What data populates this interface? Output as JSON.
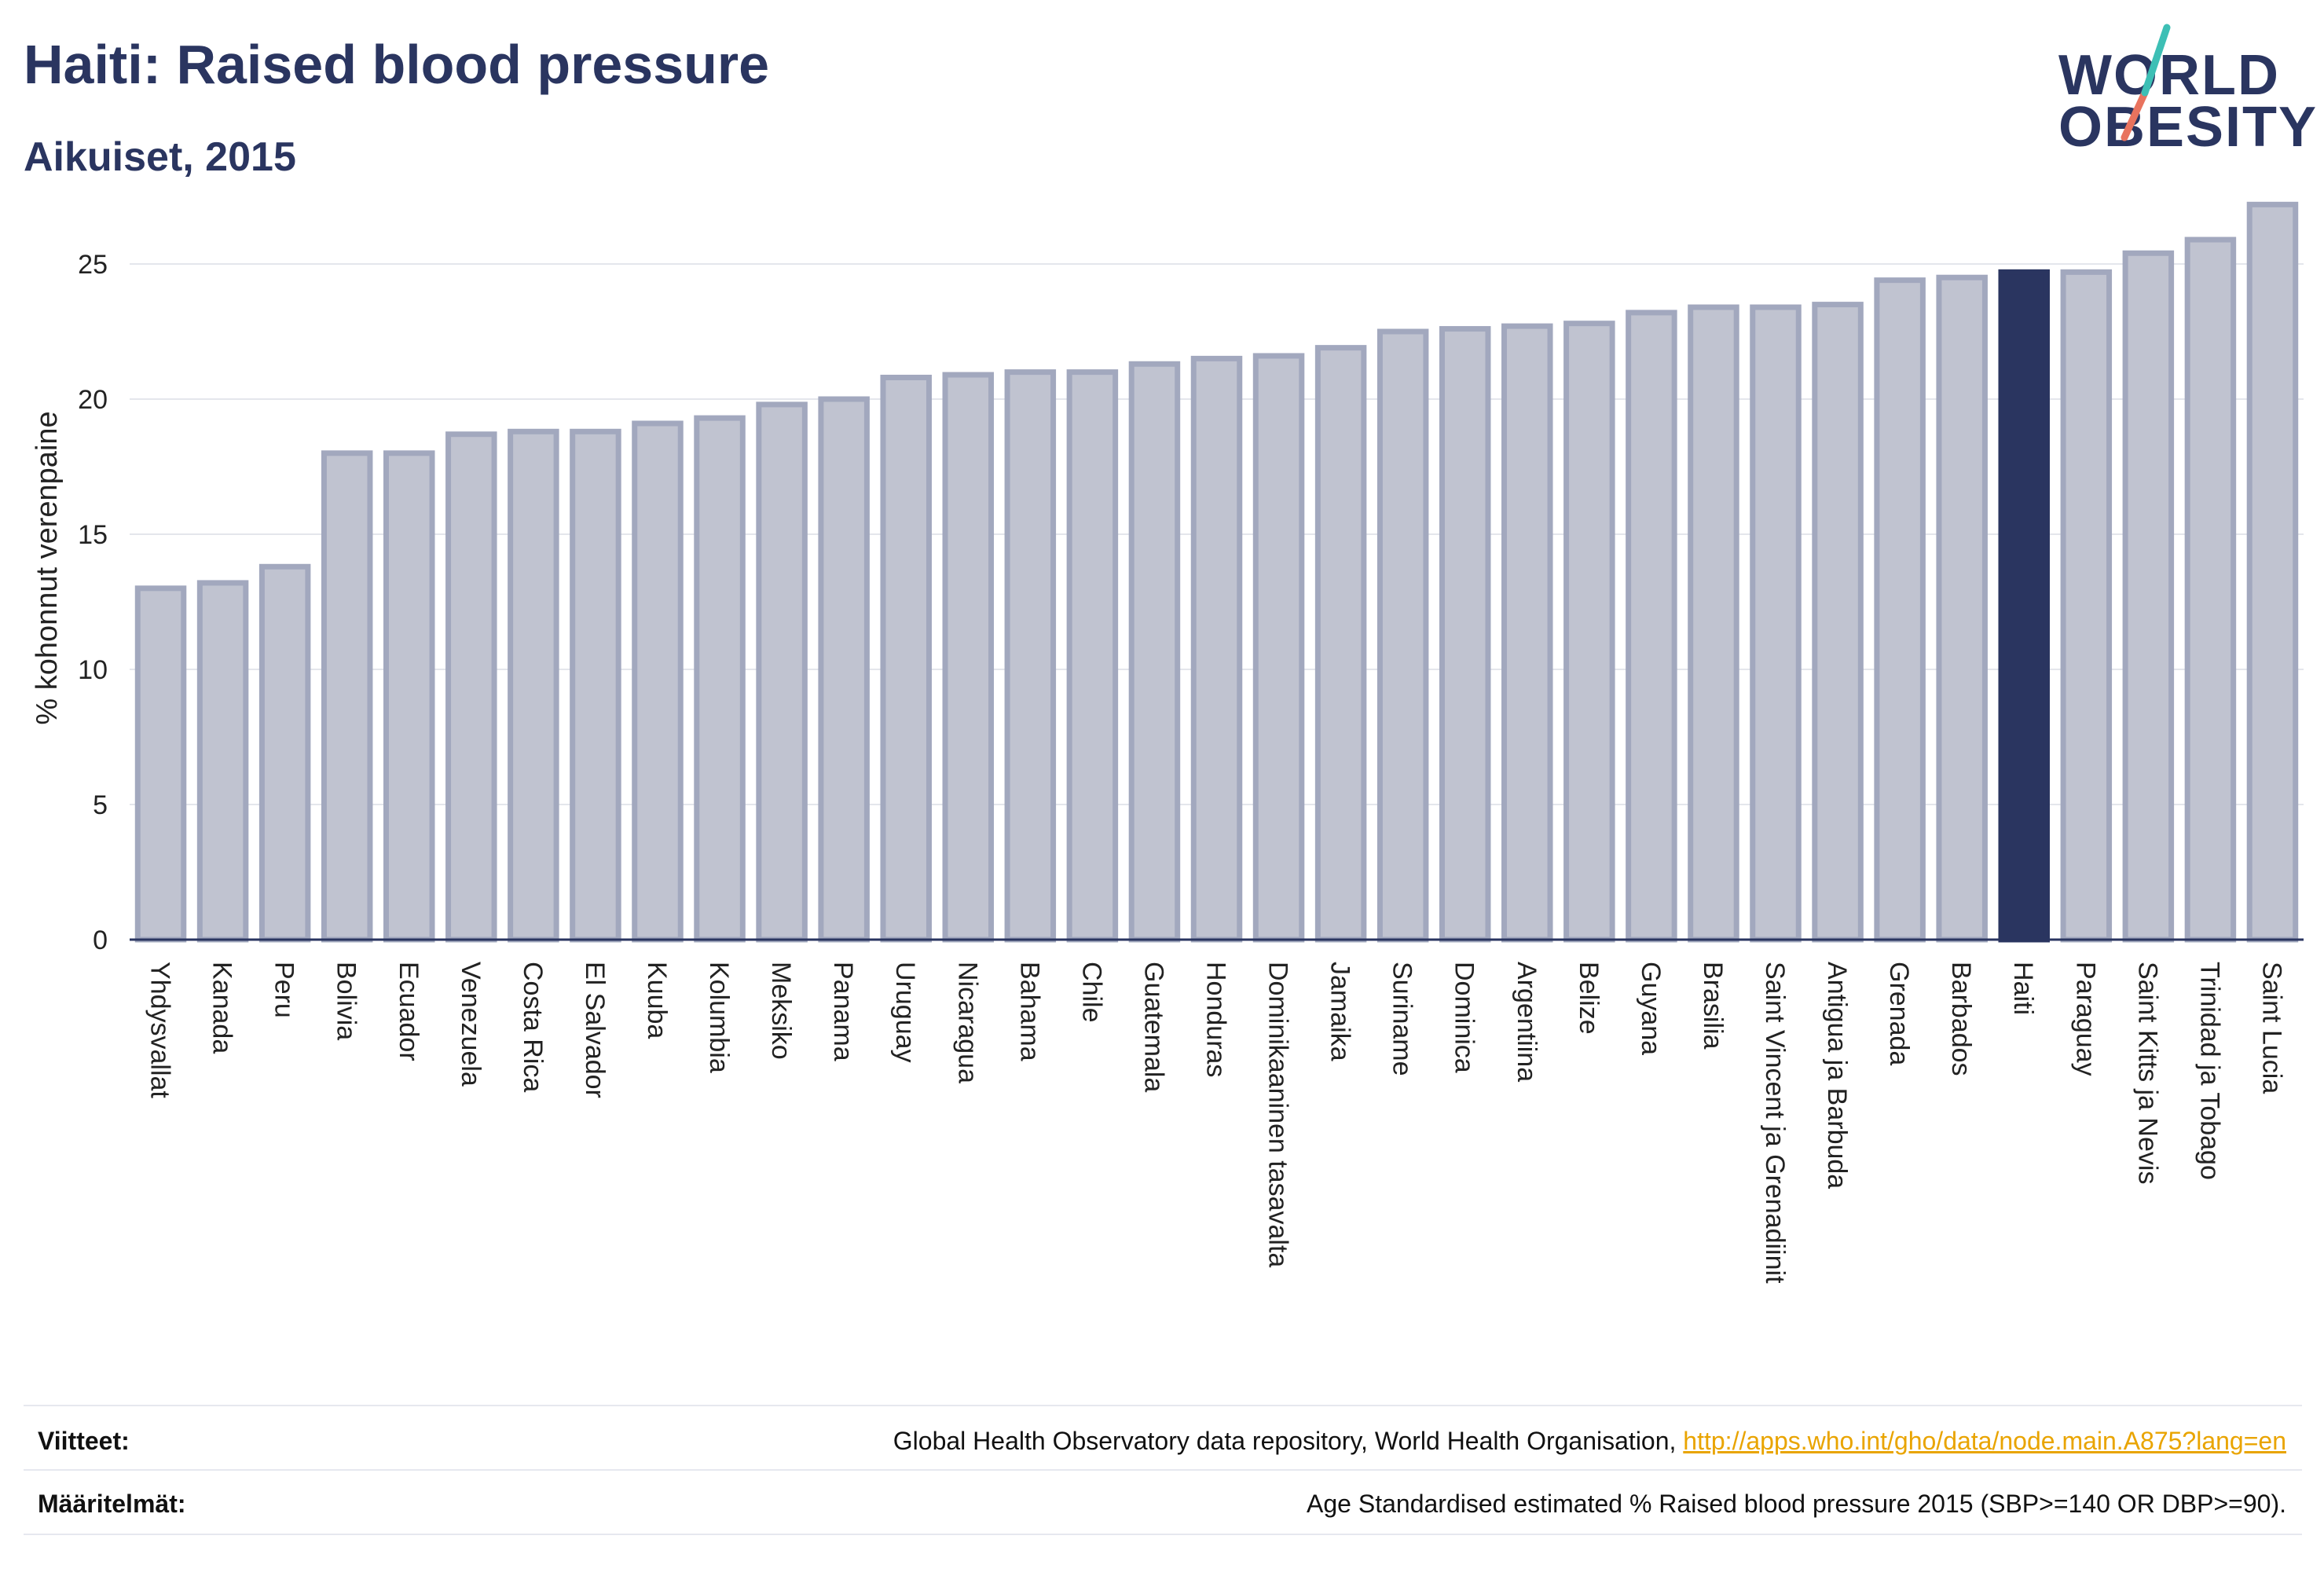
{
  "header": {
    "title": "Haiti: Raised blood pressure",
    "subtitle": "Aikuiset, 2015"
  },
  "logo": {
    "line1": "WORLD",
    "line2": "OBESITY"
  },
  "colors": {
    "bar": "#c0c3d0",
    "bar_stroke": "#a2a8be",
    "highlight": "#2a3560",
    "grid": "#e4e6ec",
    "axis": "#2a3560"
  },
  "chart_data": {
    "type": "bar",
    "ylabel": "% kohonnut verenpaine",
    "ylim": [
      0,
      27.5
    ],
    "yticks": [
      0,
      5,
      10,
      15,
      20,
      25
    ],
    "grid": true,
    "highlight_category": "Haiti",
    "categories": [
      "Yhdysvallat",
      "Kanada",
      "Peru",
      "Bolivia",
      "Ecuador",
      "Venezuela",
      "Costa Rica",
      "El Salvador",
      "Kuuba",
      "Kolumbia",
      "Meksiko",
      "Panama",
      "Uruguay",
      "Nicaragua",
      "Bahama",
      "Chile",
      "Guatemala",
      "Honduras",
      "Dominikaaninen tasavalta",
      "Jamaika",
      "Suriname",
      "Dominica",
      "Argentiina",
      "Belize",
      "Guyana",
      "Brasilia",
      "Saint Vincent ja Grenadiinit",
      "Antigua ja Barbuda",
      "Grenada",
      "Barbados",
      "Haiti",
      "Paraguay",
      "Saint Kitts ja Nevis",
      "Trinidad ja Tobago",
      "Saint Lucia"
    ],
    "values": [
      13.0,
      13.2,
      13.8,
      18.0,
      18.0,
      18.7,
      18.8,
      18.8,
      19.1,
      19.3,
      19.8,
      20.0,
      20.8,
      20.9,
      21.0,
      21.0,
      21.3,
      21.5,
      21.6,
      21.9,
      22.5,
      22.6,
      22.7,
      22.8,
      23.2,
      23.4,
      23.4,
      23.5,
      24.4,
      24.5,
      24.7,
      24.7,
      25.4,
      25.9,
      27.2
    ]
  },
  "footer": {
    "sources_label": "Viitteet:",
    "sources_text": "Global Health Observatory data repository, World Health Organisation, ",
    "sources_link": "http://apps.who.int/gho/data/node.main.A875?lang=en",
    "definitions_label": "Määritelmät:",
    "definitions_text": "Age Standardised estimated % Raised blood pressure 2015 (SBP>=140 OR DBP>=90)."
  }
}
